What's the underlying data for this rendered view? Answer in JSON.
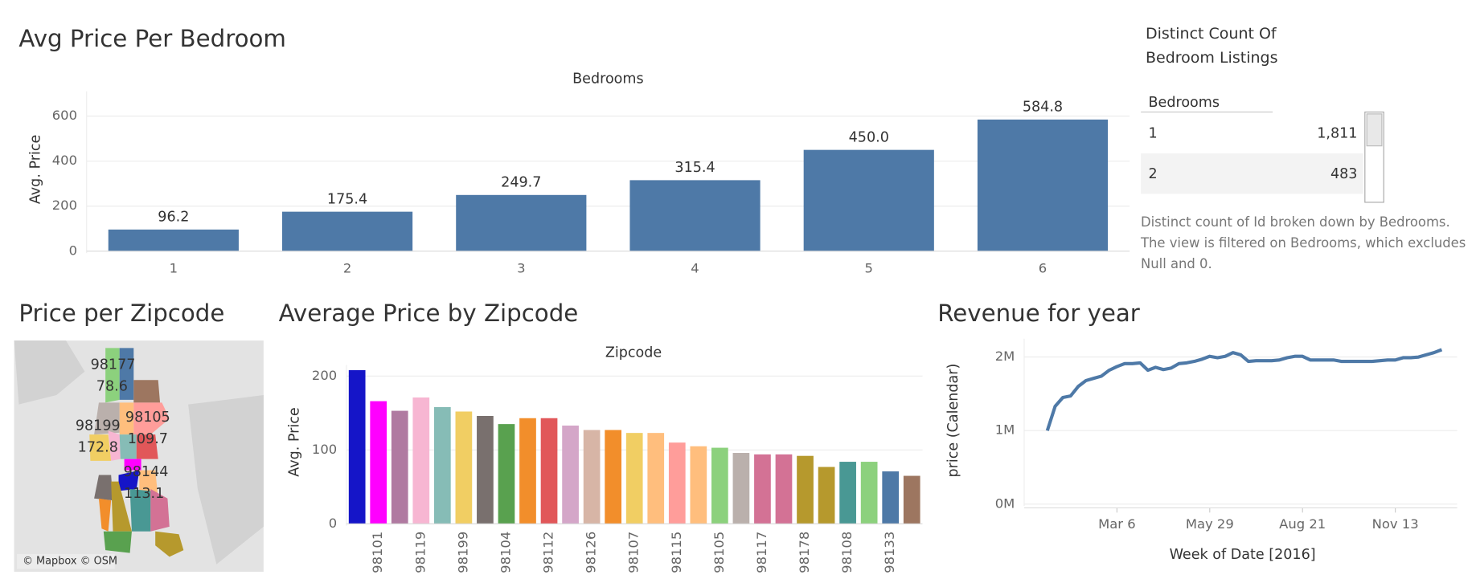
{
  "chart_data": [
    {
      "type": "bar",
      "title": "Avg Price Per Bedroom",
      "axis_title_top": "Bedrooms",
      "ylabel": "Avg. Price",
      "categories": [
        "1",
        "2",
        "3",
        "4",
        "5",
        "6"
      ],
      "values": [
        96.2,
        175.4,
        249.7,
        315.4,
        450.0,
        584.8
      ],
      "value_labels": [
        "96.2",
        "175.4",
        "249.7",
        "315.4",
        "450.0",
        "584.8"
      ],
      "color": "#4e79a7",
      "ylim": [
        0,
        710
      ],
      "yticks": [
        0,
        200,
        400,
        600
      ],
      "grid": true
    },
    {
      "type": "bar",
      "title": "Average Price by Zipcode",
      "axis_title_top": "Zipcode",
      "ylabel": "Avg. Price",
      "categories": [
        null,
        "98101",
        null,
        "98119",
        null,
        "98199",
        null,
        "98104",
        null,
        "98112",
        null,
        "98126",
        null,
        "98107",
        null,
        "98115",
        null,
        "98105",
        null,
        "98117",
        null,
        "98178",
        null,
        "98108",
        null,
        "98133",
        null
      ],
      "values": [
        208,
        166,
        153,
        171,
        158,
        152,
        146,
        135,
        143,
        143,
        133,
        127,
        127,
        123,
        123,
        110,
        105,
        103,
        96,
        94,
        94,
        92,
        77,
        84,
        84,
        71,
        65
      ],
      "colors": [
        "#1515c8",
        "#ff00ff",
        "#b07aa1",
        "#f7b6d2",
        "#86bcb6",
        "#f1ce63",
        "#79706e",
        "#59a14f",
        "#f28e2b",
        "#e15759",
        "#d4a6c8",
        "#d7b5a6",
        "#f28e2b",
        "#f1ce63",
        "#ffbe7d",
        "#ff9d9a",
        "#ffbe7d",
        "#8cd17d",
        "#bab0ac",
        "#d37295",
        "#d37295",
        "#b6992d",
        "#b6992d",
        "#499894",
        "#8cd17d",
        "#4e79a7",
        "#9d7660"
      ],
      "ylim": [
        0,
        215
      ],
      "yticks": [
        0,
        100,
        200
      ],
      "grid": true
    },
    {
      "type": "line",
      "title": "Revenue for year",
      "xlabel": "Week of Date [2016]",
      "ylabel": "price (Calendar)",
      "x": [
        "2016-01-03",
        "2016-01-10",
        "2016-01-17",
        "2016-01-24",
        "2016-01-31",
        "2016-02-07",
        "2016-02-14",
        "2016-02-21",
        "2016-02-28",
        "2016-03-06",
        "2016-03-13",
        "2016-03-20",
        "2016-03-27",
        "2016-04-03",
        "2016-04-10",
        "2016-04-17",
        "2016-04-24",
        "2016-05-01",
        "2016-05-08",
        "2016-05-15",
        "2016-05-22",
        "2016-05-29",
        "2016-06-05",
        "2016-06-12",
        "2016-06-19",
        "2016-06-26",
        "2016-07-03",
        "2016-07-10",
        "2016-07-17",
        "2016-07-24",
        "2016-07-31",
        "2016-08-07",
        "2016-08-14",
        "2016-08-21",
        "2016-08-28",
        "2016-09-04",
        "2016-09-11",
        "2016-09-18",
        "2016-09-25",
        "2016-10-02",
        "2016-10-09",
        "2016-10-16",
        "2016-10-23",
        "2016-10-30",
        "2016-11-06",
        "2016-11-13",
        "2016-11-20",
        "2016-11-27",
        "2016-12-04",
        "2016-12-11",
        "2016-12-18",
        "2016-12-25"
      ],
      "series": [
        {
          "name": "price (Calendar)",
          "color": "#4e79a7",
          "values": [
            1000000,
            1330000,
            1450000,
            1470000,
            1600000,
            1680000,
            1710000,
            1740000,
            1820000,
            1870000,
            1910000,
            1910000,
            1920000,
            1820000,
            1860000,
            1830000,
            1850000,
            1910000,
            1920000,
            1940000,
            1970000,
            2010000,
            1990000,
            2010000,
            2060000,
            2030000,
            1940000,
            1950000,
            1950000,
            1950000,
            1960000,
            1990000,
            2010000,
            2010000,
            1960000,
            1960000,
            1960000,
            1960000,
            1940000,
            1940000,
            1940000,
            1940000,
            1940000,
            1950000,
            1960000,
            1960000,
            1990000,
            1990000,
            2000000,
            2030000,
            2060000,
            2100000
          ]
        }
      ],
      "xlim": [
        "2015-12-13",
        "2017-01-08"
      ],
      "xticks": [
        {
          "value": "2016-03-06",
          "label": "Mar 6"
        },
        {
          "value": "2016-05-29",
          "label": "May 29"
        },
        {
          "value": "2016-08-21",
          "label": "Aug 21"
        },
        {
          "value": "2016-11-13",
          "label": "Nov 13"
        }
      ],
      "ylim": [
        0,
        2250000
      ],
      "yticks": [
        {
          "value": 0,
          "label": "0M"
        },
        {
          "value": 1000000,
          "label": "1M"
        },
        {
          "value": 2000000,
          "label": "2M"
        }
      ],
      "grid": true
    }
  ],
  "table": {
    "title": "Distinct Count Of Bedroom Listings",
    "header": "Bedrooms",
    "rows": [
      [
        "1",
        "1,811"
      ],
      [
        "2",
        "483"
      ]
    ],
    "note": "Distinct count of Id broken down by Bedrooms. The view is filtered on Bedrooms, which excludes Null and 0."
  },
  "map": {
    "title": "Price per Zipcode",
    "attribution": "© Mapbox © OSM",
    "labels": [
      {
        "zip": "98177",
        "value": "78.6"
      },
      {
        "zip": "98105",
        "value": "109.7"
      },
      {
        "zip": "98199",
        "value": "172.8"
      },
      {
        "zip": "98144",
        "value": "113.1"
      }
    ]
  }
}
